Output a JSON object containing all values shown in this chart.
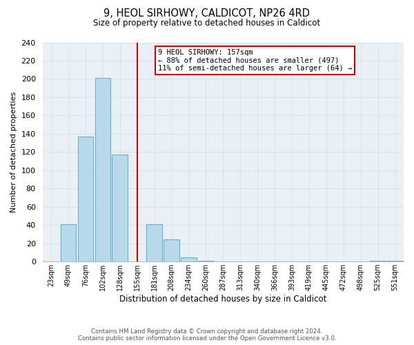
{
  "title": "9, HEOL SIRHOWY, CALDICOT, NP26 4RD",
  "subtitle": "Size of property relative to detached houses in Caldicot",
  "xlabel": "Distribution of detached houses by size in Caldicot",
  "ylabel": "Number of detached properties",
  "bar_labels": [
    "23sqm",
    "49sqm",
    "76sqm",
    "102sqm",
    "128sqm",
    "155sqm",
    "181sqm",
    "208sqm",
    "234sqm",
    "260sqm",
    "287sqm",
    "313sqm",
    "340sqm",
    "366sqm",
    "393sqm",
    "419sqm",
    "445sqm",
    "472sqm",
    "498sqm",
    "525sqm",
    "551sqm"
  ],
  "bar_values": [
    0,
    41,
    137,
    201,
    117,
    0,
    41,
    24,
    5,
    1,
    0,
    0,
    0,
    0,
    0,
    0,
    0,
    0,
    0,
    1,
    1
  ],
  "bar_color": "#b8d9ea",
  "bar_edge_color": "#6aaed0",
  "vline_index": 5,
  "vline_color": "#cc0000",
  "ylim": [
    0,
    240
  ],
  "annotation_line1": "9 HEOL SIRHOWY: 157sqm",
  "annotation_line2": "← 88% of detached houses are smaller (497)",
  "annotation_line3": "11% of semi-detached houses are larger (64) →",
  "footer_line1": "Contains HM Land Registry data © Crown copyright and database right 2024.",
  "footer_line2": "Contains public sector information licensed under the Open Government Licence v3.0.",
  "grid_color": "#d8e4ec",
  "background_color": "#ffffff",
  "annotation_box_edge_color": "#cc0000"
}
